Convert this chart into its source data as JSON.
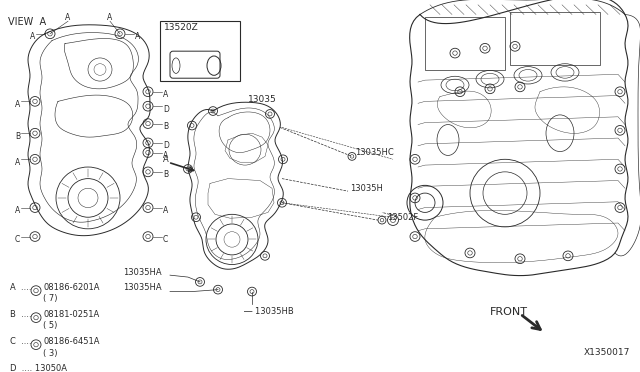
{
  "bg_color": "#ffffff",
  "line_color": "#2a2a2a",
  "diagram_id": "X1350017",
  "view_label": "VIEW A",
  "front_label": "FRONT",
  "legend": [
    {
      "key": "A",
      "part": "08186-6201A",
      "qty": "( 7)"
    },
    {
      "key": "B",
      "part": "08181-0251A",
      "qty": "( 5)"
    },
    {
      "key": "C",
      "part": "08186-6451A",
      "qty": "( 3)"
    },
    {
      "key": "D",
      "part": "13050A",
      "qty": ""
    }
  ]
}
